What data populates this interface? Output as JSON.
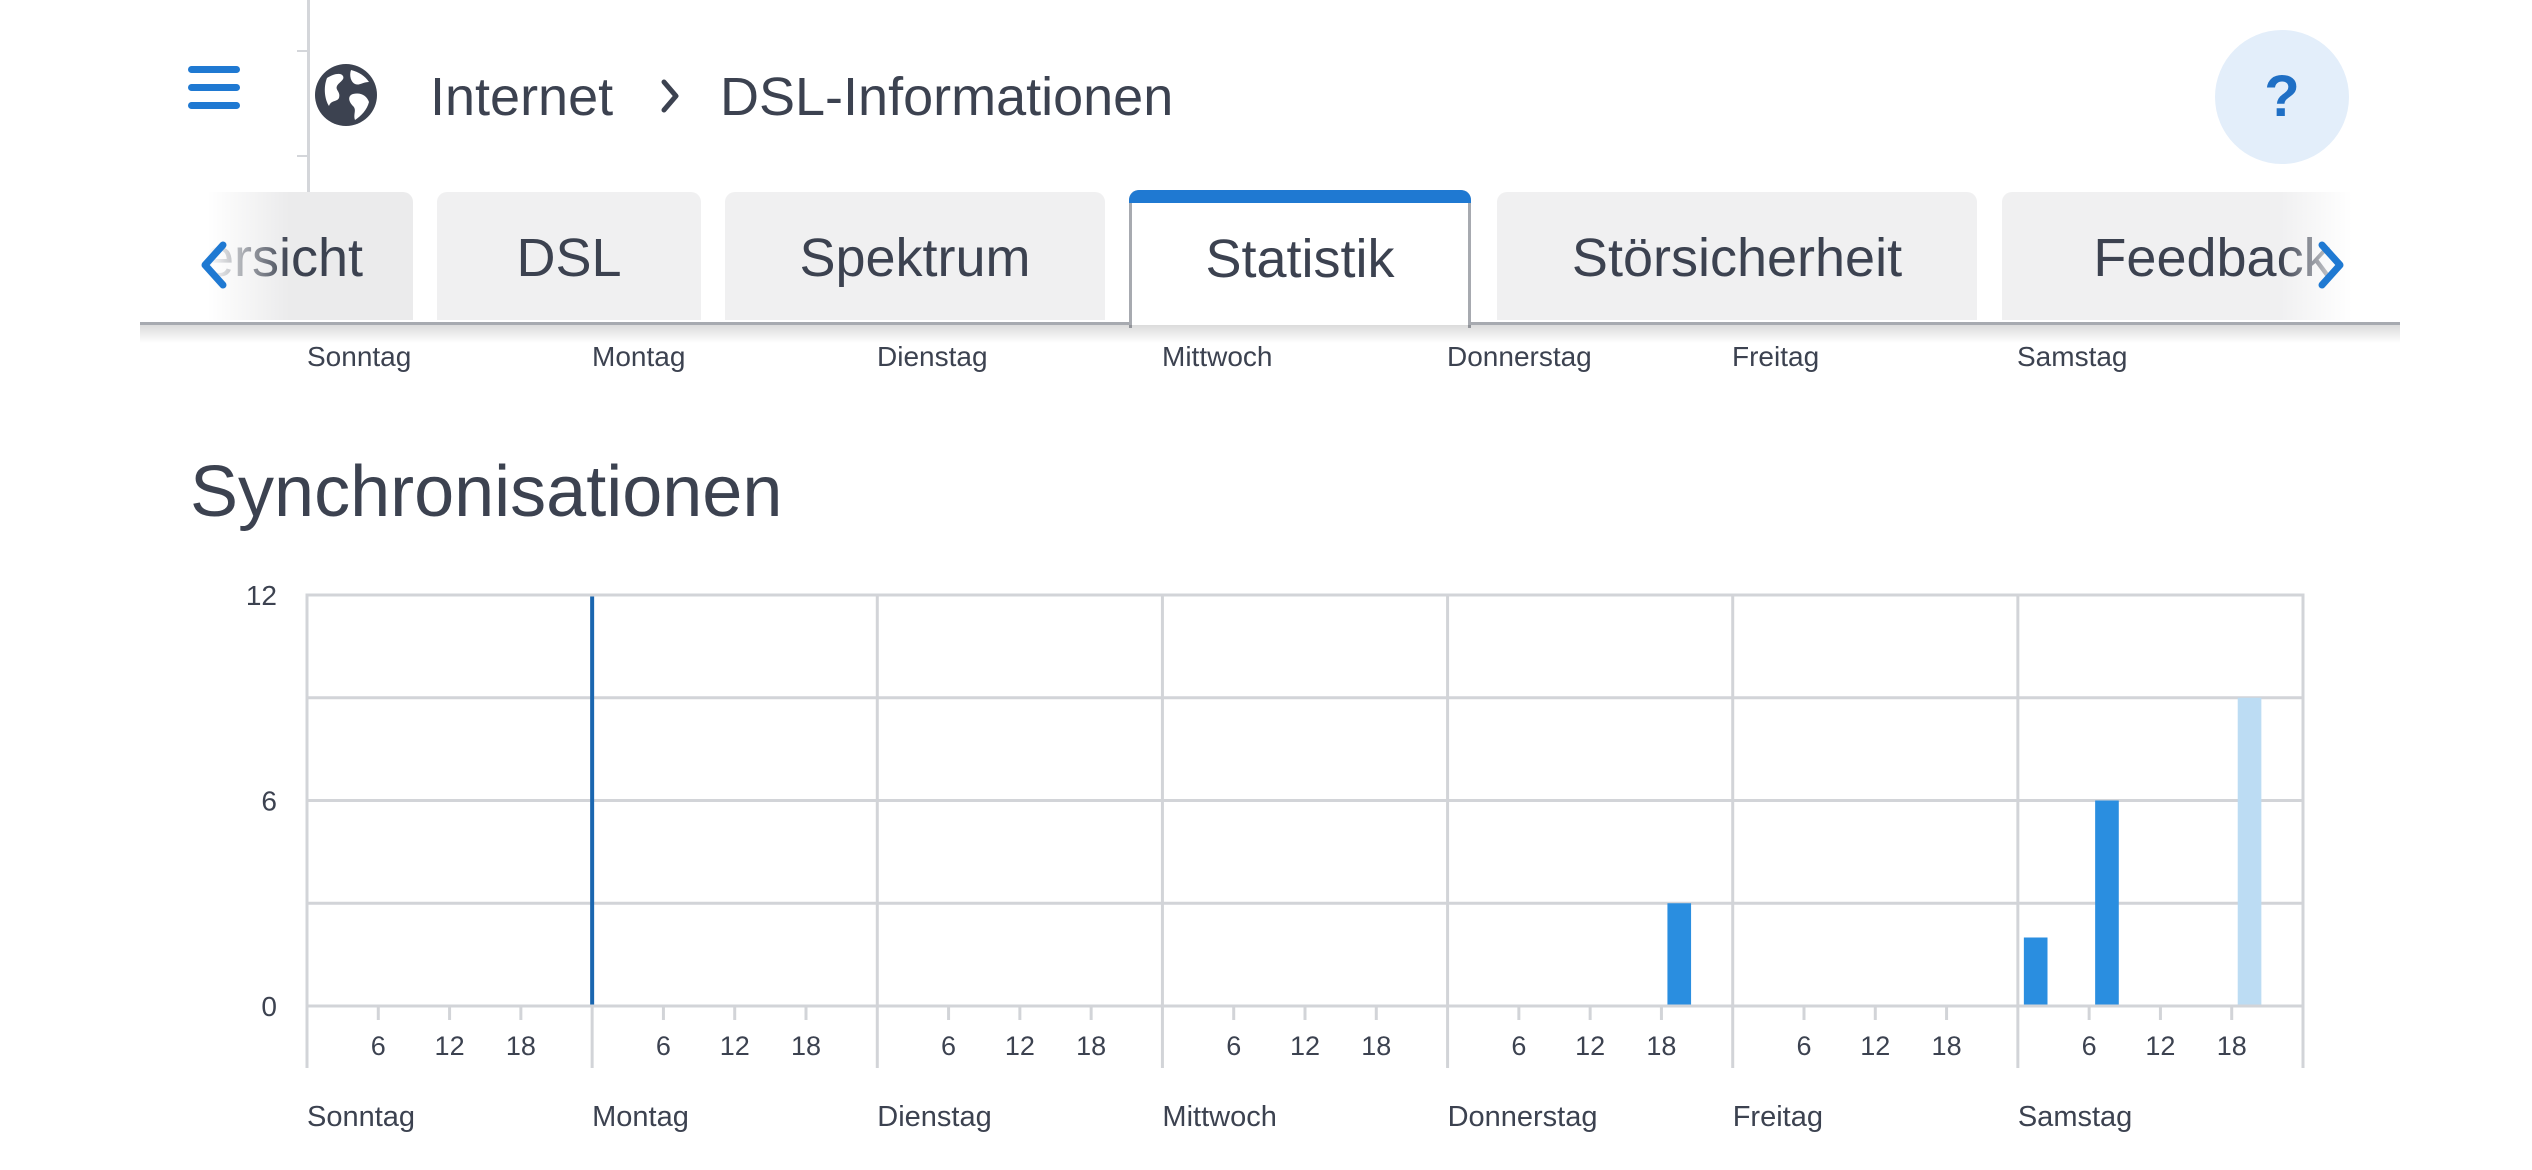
{
  "header": {
    "breadcrumb_parent": "Internet",
    "breadcrumb_current": "DSL-Informationen",
    "help_label": "?"
  },
  "tabs": [
    {
      "label": "Übersicht",
      "active": false
    },
    {
      "label": "DSL",
      "active": false
    },
    {
      "label": "Spektrum",
      "active": false
    },
    {
      "label": "Statistik",
      "active": true
    },
    {
      "label": "Störsicherheit",
      "active": false
    },
    {
      "label": "Feedback",
      "active": false
    }
  ],
  "top_day_labels": [
    "Sonntag",
    "Montag",
    "Dienstag",
    "Mittwoch",
    "Donnerstag",
    "Freitag",
    "Samstag"
  ],
  "section": {
    "title": "Synchronisationen"
  },
  "colors": {
    "accent": "#1f79d2",
    "bar": "#2a8ee0",
    "bar_current": "#bcdcf3",
    "grid": "#d2d4d8"
  },
  "chart_data": {
    "type": "bar",
    "title": "Synchronisationen",
    "ylim": [
      0,
      12
    ],
    "yticks": [
      "0",
      "6",
      "12"
    ],
    "days": [
      "Sonntag",
      "Montag",
      "Dienstag",
      "Mittwoch",
      "Donnerstag",
      "Freitag",
      "Samstag"
    ],
    "hour_ticks": [
      "6",
      "12",
      "18"
    ],
    "bin_hours": 3,
    "marker": {
      "day_index": 1,
      "hour": 0
    },
    "bars": [
      {
        "day_index": 4,
        "hour_start": 18,
        "value": 3
      },
      {
        "day_index": 6,
        "hour_start": 0,
        "value": 2
      },
      {
        "day_index": 6,
        "hour_start": 6,
        "value": 6
      },
      {
        "day_index": 6,
        "hour_start": 18,
        "value": 9,
        "current": true
      }
    ]
  }
}
